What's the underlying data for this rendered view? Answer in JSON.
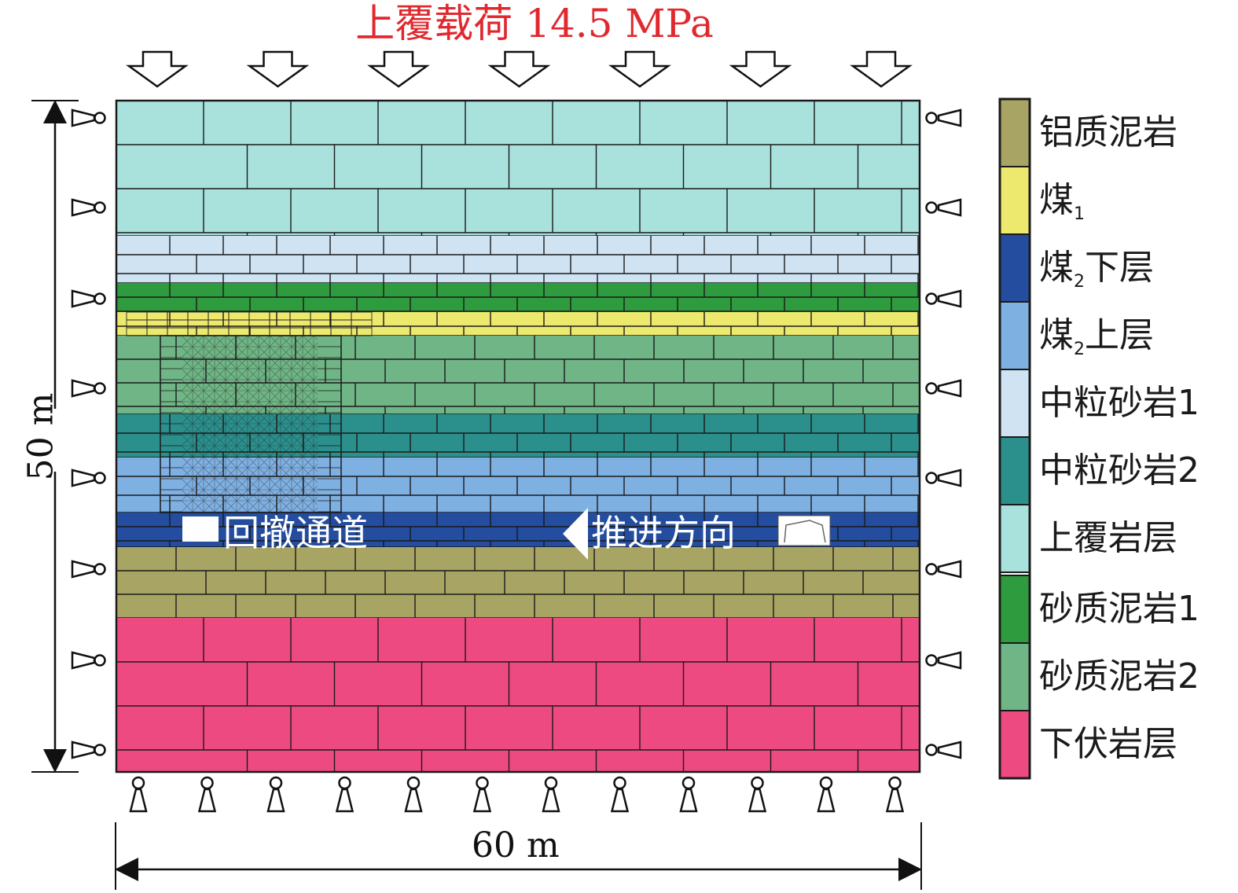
{
  "load": {
    "text": "上覆载荷 14.5 MPa",
    "color": "#e0282e"
  },
  "dimensions": {
    "height": "50 m",
    "width": "60 m"
  },
  "labels": {
    "retreat_channel": "回撤通道",
    "advance_direction": "推进方向"
  },
  "legend": [
    {
      "label": "铝质泥岩",
      "color": "#a8a464"
    },
    {
      "label": "煤",
      "sub": "1",
      "color": "#ece96e"
    },
    {
      "label": "煤",
      "sub": "2",
      "suffix": "下层",
      "color": "#244d9f"
    },
    {
      "label": "煤",
      "sub": "2",
      "suffix": "上层",
      "color": "#7fb0e2"
    },
    {
      "label": "中粒砂岩1",
      "color": "#cfe3f3"
    },
    {
      "label": "中粒砂岩2",
      "color": "#2b8f8c"
    },
    {
      "label": "上覆岩层",
      "color": "#a9e1dc"
    },
    {
      "label": "砂质泥岩1",
      "color": "#2f9b3f"
    },
    {
      "label": "砂质泥岩2",
      "color": "#6fb585"
    },
    {
      "label": "下伏岩层",
      "color": "#ee4a82"
    }
  ]
}
